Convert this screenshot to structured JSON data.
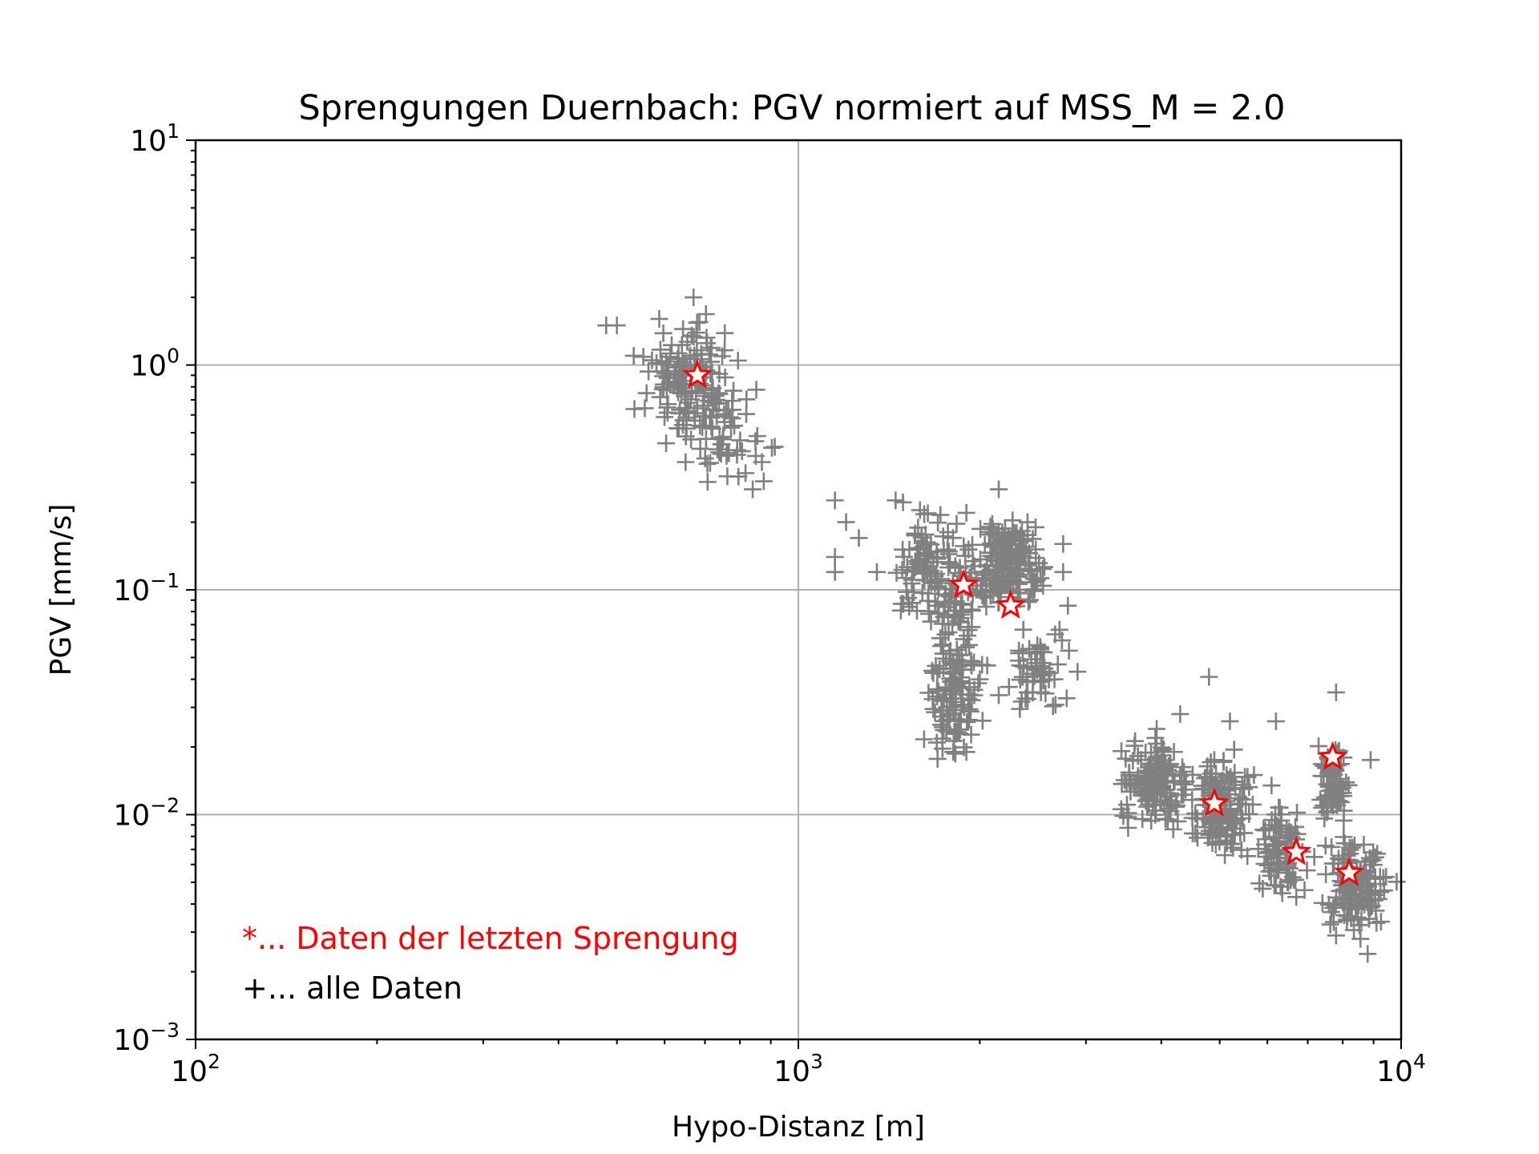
{
  "chart_data": {
    "type": "scatter",
    "title": "Sprengungen Duernbach: PGV normiert auf MSS_M = 2.0",
    "xlabel": "Hypo-Distanz [m]",
    "ylabel": "PGV [mm/s]",
    "xscale": "log",
    "yscale": "log",
    "xlim": [
      100,
      10000
    ],
    "ylim": [
      0.001,
      10
    ],
    "grid": true,
    "x_ticks": [
      {
        "value": 100,
        "base": "10",
        "exp": "2"
      },
      {
        "value": 1000,
        "base": "10",
        "exp": "3"
      },
      {
        "value": 10000,
        "base": "10",
        "exp": "4"
      }
    ],
    "y_ticks": [
      {
        "value": 0.001,
        "base": "10",
        "exp": "−3"
      },
      {
        "value": 0.01,
        "base": "10",
        "exp": "−2"
      },
      {
        "value": 0.1,
        "base": "10",
        "exp": "−1"
      },
      {
        "value": 1,
        "base": "10",
        "exp": "0"
      },
      {
        "value": 10,
        "base": "10",
        "exp": "1"
      }
    ],
    "annotations": [
      {
        "text": "*... Daten der letzten Sprengung",
        "color": "#ff0000"
      },
      {
        "text": "+... alle Daten",
        "color": "#000000"
      }
    ],
    "series": [
      {
        "marker": "plus",
        "color": "#808080",
        "clusters": [
          {
            "x_center": 660,
            "y_center": 0.85,
            "x_spread": 0.035,
            "y_spread": 0.12,
            "count": 150
          },
          {
            "x_center": 790,
            "y_center": 0.44,
            "x_spread": 0.03,
            "y_spread": 0.1,
            "count": 45
          },
          {
            "x_center": 1650,
            "y_center": 0.12,
            "x_spread": 0.03,
            "y_spread": 0.12,
            "count": 110
          },
          {
            "x_center": 1800,
            "y_center": 0.03,
            "x_spread": 0.02,
            "y_spread": 0.12,
            "count": 90
          },
          {
            "x_center": 1850,
            "y_center": 0.07,
            "x_spread": 0.02,
            "y_spread": 0.18,
            "count": 70
          },
          {
            "x_center": 2250,
            "y_center": 0.13,
            "x_spread": 0.025,
            "y_spread": 0.1,
            "count": 170
          },
          {
            "x_center": 2500,
            "y_center": 0.045,
            "x_spread": 0.025,
            "y_spread": 0.1,
            "count": 55
          },
          {
            "x_center": 3900,
            "y_center": 0.014,
            "x_spread": 0.025,
            "y_spread": 0.08,
            "count": 150
          },
          {
            "x_center": 5000,
            "y_center": 0.011,
            "x_spread": 0.025,
            "y_spread": 0.1,
            "count": 140
          },
          {
            "x_center": 6300,
            "y_center": 0.007,
            "x_spread": 0.02,
            "y_spread": 0.1,
            "count": 85
          },
          {
            "x_center": 7700,
            "y_center": 0.014,
            "x_spread": 0.012,
            "y_spread": 0.08,
            "count": 80
          },
          {
            "x_center": 8400,
            "y_center": 0.005,
            "x_spread": 0.025,
            "y_spread": 0.1,
            "count": 140
          }
        ],
        "points": [
          {
            "x": 480,
            "y": 1.5
          },
          {
            "x": 500,
            "y": 1.5
          },
          {
            "x": 670,
            "y": 2.0
          },
          {
            "x": 650,
            "y": 0.37
          },
          {
            "x": 560,
            "y": 0.75
          },
          {
            "x": 590,
            "y": 0.72
          },
          {
            "x": 870,
            "y": 0.37
          },
          {
            "x": 840,
            "y": 0.28
          },
          {
            "x": 1150,
            "y": 0.25
          },
          {
            "x": 1150,
            "y": 0.14
          },
          {
            "x": 1150,
            "y": 0.12
          },
          {
            "x": 1200,
            "y": 0.2
          },
          {
            "x": 1260,
            "y": 0.17
          },
          {
            "x": 1350,
            "y": 0.12
          },
          {
            "x": 1450,
            "y": 0.25
          },
          {
            "x": 1900,
            "y": 0.22
          },
          {
            "x": 2150,
            "y": 0.28
          },
          {
            "x": 2400,
            "y": 0.2
          },
          {
            "x": 2750,
            "y": 0.16
          },
          {
            "x": 2750,
            "y": 0.12
          },
          {
            "x": 2800,
            "y": 0.085
          },
          {
            "x": 2150,
            "y": 0.034
          },
          {
            "x": 2000,
            "y": 0.04
          },
          {
            "x": 1900,
            "y": 0.019
          },
          {
            "x": 1850,
            "y": 0.023
          },
          {
            "x": 2400,
            "y": 0.035
          },
          {
            "x": 4300,
            "y": 0.028
          },
          {
            "x": 4800,
            "y": 0.041
          },
          {
            "x": 5200,
            "y": 0.026
          },
          {
            "x": 5700,
            "y": 0.015
          },
          {
            "x": 6200,
            "y": 0.026
          },
          {
            "x": 6500,
            "y": 0.005
          },
          {
            "x": 6700,
            "y": 0.0043
          },
          {
            "x": 7800,
            "y": 0.035
          },
          {
            "x": 8900,
            "y": 0.0175
          },
          {
            "x": 8800,
            "y": 0.0024
          },
          {
            "x": 7800,
            "y": 0.0029
          },
          {
            "x": 9100,
            "y": 0.0033
          },
          {
            "x": 4100,
            "y": 0.0095
          },
          {
            "x": 5100,
            "y": 0.0066
          }
        ]
      },
      {
        "marker": "star",
        "color": "#ff0000",
        "points": [
          {
            "x": 680,
            "y": 0.9
          },
          {
            "x": 1880,
            "y": 0.105
          },
          {
            "x": 2250,
            "y": 0.085
          },
          {
            "x": 4900,
            "y": 0.0112
          },
          {
            "x": 6700,
            "y": 0.0068
          },
          {
            "x": 7700,
            "y": 0.018
          },
          {
            "x": 8200,
            "y": 0.0055
          }
        ]
      }
    ]
  }
}
